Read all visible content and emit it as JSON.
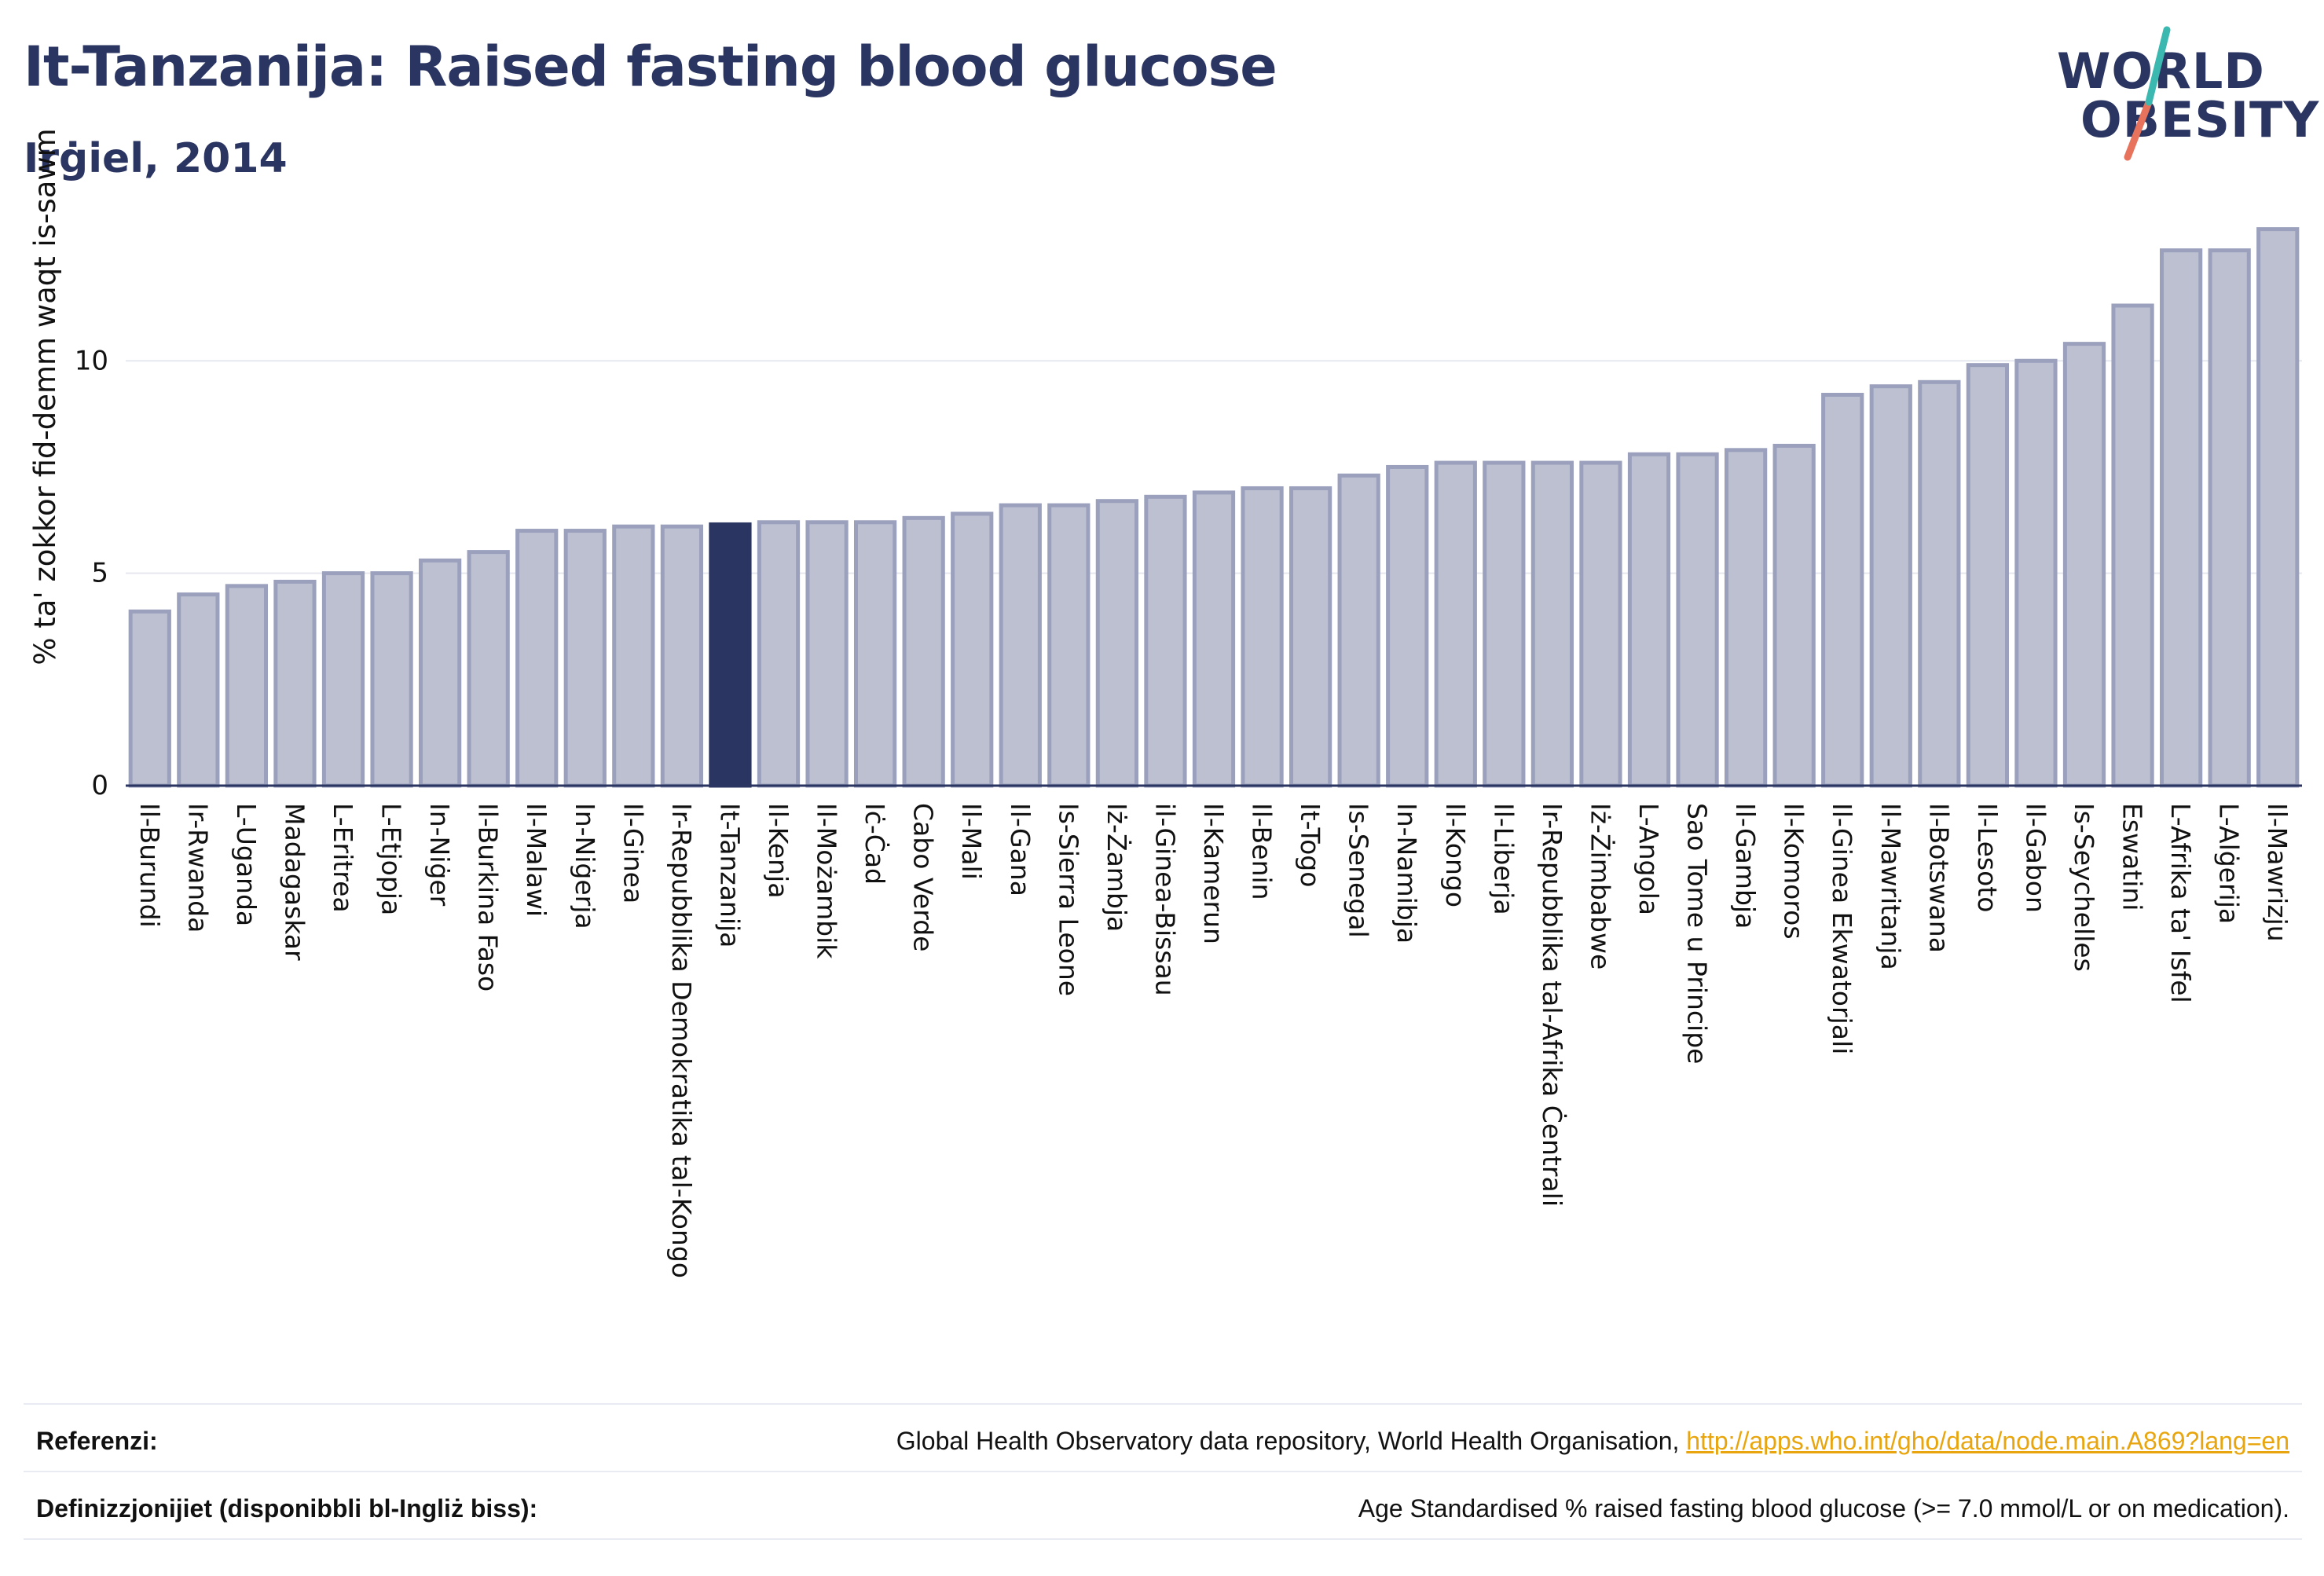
{
  "header": {
    "title": "It-Tanzanija: Raised fasting blood glucose",
    "subtitle": "Irġiel, 2014"
  },
  "logo": {
    "line1": "WORLD",
    "line2": "OBESITY"
  },
  "colors": {
    "bar": "#bcc0d1",
    "bar_stroke": "#9ba1bd",
    "highlight": "#2b3561",
    "grid": "#e6e8ef",
    "axis": "#2b3561",
    "logo_teal": "#3bb8b0",
    "logo_coral": "#e8735c"
  },
  "chart_data": {
    "type": "bar",
    "title": "It-Tanzanija: Raised fasting blood glucose",
    "subtitle": "Irġiel, 2014",
    "xlabel": "",
    "ylabel": "% ta' zokkor fid-demm waqt is-sawm",
    "ylim": [
      0,
      13.5
    ],
    "yticks": [
      0,
      5,
      10
    ],
    "grid": true,
    "highlight": "It-Tanzanija",
    "categories": [
      "Il-Burundi",
      "Ir-Rwanda",
      "L-Uganda",
      "Madagaskar",
      "L-Eritrea",
      "L-Etjopja",
      "In-Niġer",
      "Il-Burkina Faso",
      "Il-Malawi",
      "In-Niġerja",
      "Il-Ginea",
      "Ir-Repubblika Demokratika tal-Kongo",
      "It-Tanzanija",
      "Il-Kenja",
      "Il-Możambik",
      "Iċ-Ċad",
      "Cabo Verde",
      "Il-Mali",
      "Il-Gana",
      "Is-Sierra Leone",
      "Iż-Żambja",
      "il-Ginea-Bissau",
      "Il-Kamerun",
      "Il-Benin",
      "It-Togo",
      "Is-Senegal",
      "In-Namibja",
      "Il-Kongo",
      "Il-Liberja",
      "Ir-Repubblika tal-Afrika Ċentrali",
      "Iż-Żimbabwe",
      "L-Angola",
      "Sao Tome u Principe",
      "Il-Gambja",
      "Il-Komoros",
      "Il-Ginea Ekwatorjali",
      "Il-Mawritanja",
      "Il-Botswana",
      "Il-Lesoto",
      "Il-Gabon",
      "Is-Seychelles",
      "Eswatini",
      "L-Afrika ta' Isfel",
      "L-Alġerija",
      "Il-Mawrizju"
    ],
    "values": [
      4.1,
      4.5,
      4.7,
      4.8,
      5.0,
      5.0,
      5.3,
      5.5,
      6.0,
      6.0,
      6.1,
      6.1,
      6.15,
      6.2,
      6.2,
      6.2,
      6.3,
      6.4,
      6.6,
      6.6,
      6.7,
      6.8,
      6.9,
      7.0,
      7.0,
      7.3,
      7.5,
      7.6,
      7.6,
      7.6,
      7.6,
      7.8,
      7.8,
      7.9,
      8.0,
      9.2,
      9.4,
      9.5,
      9.9,
      10.0,
      10.4,
      11.3,
      12.6,
      12.6,
      13.1
    ]
  },
  "footer": {
    "references_label": "Referenzi:",
    "references_text": "Global Health Observatory data repository, World Health Organisation, ",
    "references_link": "http://apps.who.int/gho/data/node.main.A869?lang=en",
    "definitions_label": "Definizzjonijiet (disponibbli bl-Ingliż biss):",
    "definitions_text": "Age Standardised % raised fasting blood glucose (>= 7.0 mmol/L or on medication)."
  }
}
